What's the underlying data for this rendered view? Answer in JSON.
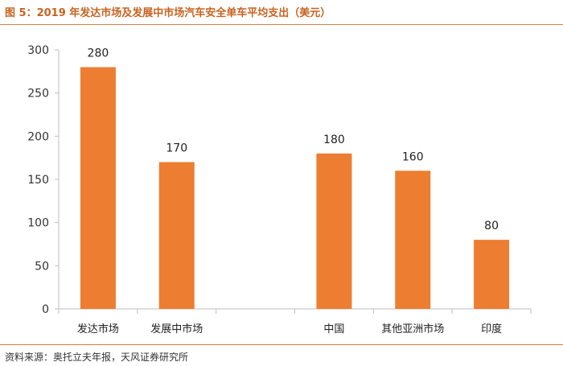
{
  "header": {
    "title": "图 5：2019 年发达市场及发展中市场汽车安全单车平均支出（美元）"
  },
  "footer": {
    "source": "资料来源：奥托立夫年报，天风证券研究所"
  },
  "chart_data": {
    "type": "bar",
    "title": "图 5：2019 年发达市场及发展中市场汽车安全单车平均支出（美元）",
    "categories": [
      "发达市场",
      "发展中市场",
      "",
      "中国",
      "其他亚洲市场",
      "印度"
    ],
    "values": [
      280,
      170,
      null,
      180,
      160,
      80
    ],
    "data_labels": [
      "280",
      "170",
      "",
      "180",
      "160",
      "80"
    ],
    "ylim": [
      0,
      300
    ],
    "yticks": [
      0,
      50,
      100,
      150,
      200,
      250,
      300
    ],
    "xlabel": "",
    "ylabel": "",
    "grid": false,
    "legend": "none",
    "bar_color": "#ED7D31",
    "axis_color": "#BFBFBF"
  }
}
